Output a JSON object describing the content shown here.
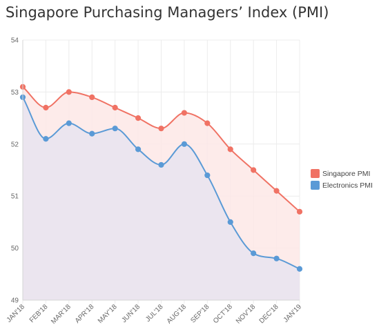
{
  "chart_data": {
    "type": "line",
    "title": "Singapore Purchasing Managers’ Index (PMI)",
    "xlabel": "",
    "ylabel": "",
    "categories": [
      "JAN'18",
      "FEB'18",
      "MAR'18",
      "APR'18",
      "MAY'18",
      "JUN'18",
      "JUL'18",
      "AUG'18",
      "SEP'18",
      "OCT'18",
      "NOV'18",
      "DEC'18",
      "JAN'19"
    ],
    "ylim": [
      49,
      54
    ],
    "yticks": [
      "49",
      "50",
      "51",
      "52",
      "53",
      "54"
    ],
    "grid": true,
    "legend_position": "right",
    "series": [
      {
        "name": "Singapore PMI",
        "color": "#f07264",
        "fill": "#fde7e6",
        "values": [
          53.1,
          52.7,
          53.0,
          52.9,
          52.7,
          52.5,
          52.3,
          52.6,
          52.4,
          51.9,
          51.5,
          51.1,
          50.7
        ]
      },
      {
        "name": "Electronics PMI",
        "color": "#5a9ad6",
        "fill": "#e8e4f0",
        "values": [
          52.9,
          52.1,
          52.4,
          52.2,
          52.3,
          51.9,
          51.6,
          52.0,
          51.4,
          50.5,
          49.9,
          49.8,
          49.6
        ]
      }
    ]
  }
}
